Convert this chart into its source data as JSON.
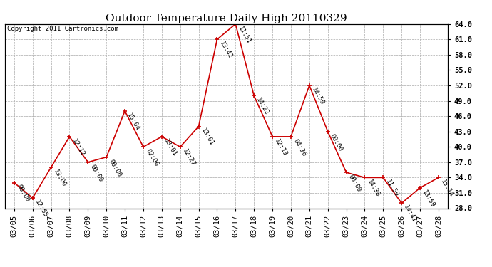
{
  "title": "Outdoor Temperature Daily High 20110329",
  "copyright": "Copyright 2011 Cartronics.com",
  "dates": [
    "03/05",
    "03/06",
    "03/07",
    "03/08",
    "03/09",
    "03/10",
    "03/11",
    "03/12",
    "03/13",
    "03/14",
    "03/15",
    "03/16",
    "03/17",
    "03/18",
    "03/19",
    "03/20",
    "03/21",
    "03/22",
    "03/23",
    "03/24",
    "03/25",
    "03/26",
    "03/27",
    "03/28"
  ],
  "temps": [
    33.0,
    30.0,
    36.0,
    42.0,
    37.0,
    38.0,
    47.0,
    40.0,
    42.0,
    40.0,
    44.0,
    61.0,
    64.0,
    50.0,
    42.0,
    42.0,
    52.0,
    43.0,
    35.0,
    34.0,
    34.0,
    29.0,
    32.0,
    34.0
  ],
  "times": [
    "00:00",
    "12:55",
    "13:00",
    "12:12",
    "00:00",
    "00:00",
    "15:04",
    "02:06",
    "13:01",
    "12:27",
    "13:01",
    "13:42",
    "11:51",
    "14:22",
    "12:13",
    "04:36",
    "14:59",
    "00:00",
    "00:00",
    "14:38",
    "11:59",
    "14:41",
    "13:59",
    "15:14"
  ],
  "line_color": "#cc0000",
  "marker_color": "#cc0000",
  "bg_color": "#ffffff",
  "grid_color": "#aaaaaa",
  "title_fontsize": 11,
  "label_fontsize": 6.5,
  "tick_fontsize": 7.5,
  "copyright_fontsize": 6.5,
  "ylim": [
    28.0,
    64.0
  ],
  "yticks": [
    28.0,
    31.0,
    34.0,
    37.0,
    40.0,
    43.0,
    46.0,
    49.0,
    52.0,
    55.0,
    58.0,
    61.0,
    64.0
  ]
}
